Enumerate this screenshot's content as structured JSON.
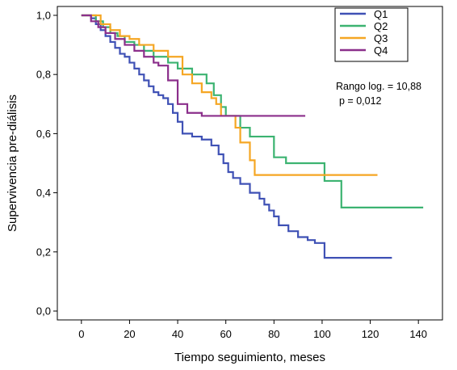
{
  "chart_data": {
    "type": "line",
    "title": "",
    "xlabel": "Tiempo seguimiento, meses",
    "ylabel": "Supervivencia pre-diálisis",
    "xlim": [
      -10,
      150
    ],
    "ylim": [
      -0.03,
      1.03
    ],
    "x_ticks": [
      0,
      20,
      40,
      60,
      80,
      100,
      120,
      140
    ],
    "y_ticks": [
      0,
      0.2,
      0.4,
      0.6,
      0.8,
      1.0
    ],
    "y_tick_labels": [
      "0,0",
      "0,2",
      "0,4",
      "0,6",
      "0,8",
      "1,0"
    ],
    "legend_position": "top-right",
    "step": true,
    "series": [
      {
        "name": "Q1",
        "color": "#3f51b5",
        "x": [
          0,
          4,
          6,
          8,
          10,
          12,
          14,
          16,
          18,
          20,
          22,
          24,
          26,
          28,
          30,
          32,
          34,
          36,
          38,
          40,
          42,
          46,
          50,
          54,
          57,
          59,
          61,
          63,
          66,
          70,
          74,
          76,
          78,
          80,
          82,
          86,
          90,
          94,
          97,
          101,
          129
        ],
        "y": [
          1.0,
          0.99,
          0.97,
          0.95,
          0.93,
          0.91,
          0.89,
          0.87,
          0.86,
          0.84,
          0.82,
          0.8,
          0.78,
          0.76,
          0.74,
          0.73,
          0.72,
          0.7,
          0.67,
          0.64,
          0.6,
          0.59,
          0.58,
          0.56,
          0.53,
          0.5,
          0.47,
          0.45,
          0.43,
          0.4,
          0.38,
          0.36,
          0.34,
          0.32,
          0.29,
          0.27,
          0.25,
          0.24,
          0.23,
          0.18,
          0.18
        ]
      },
      {
        "name": "Q2",
        "color": "#3cb371",
        "x": [
          0,
          6,
          9,
          12,
          15,
          18,
          22,
          26,
          30,
          36,
          40,
          46,
          52,
          55,
          58,
          60,
          66,
          70,
          80,
          85,
          101,
          108,
          125,
          142
        ],
        "y": [
          1.0,
          0.98,
          0.96,
          0.94,
          0.93,
          0.91,
          0.9,
          0.88,
          0.86,
          0.84,
          0.82,
          0.8,
          0.77,
          0.73,
          0.69,
          0.66,
          0.62,
          0.59,
          0.52,
          0.5,
          0.44,
          0.35,
          0.35,
          0.35
        ]
      },
      {
        "name": "Q3",
        "color": "#f5a623",
        "x": [
          0,
          8,
          12,
          16,
          20,
          24,
          30,
          36,
          42,
          46,
          50,
          54,
          56,
          58,
          64,
          66,
          70,
          72,
          80,
          90,
          101,
          123
        ],
        "y": [
          1.0,
          0.97,
          0.95,
          0.93,
          0.92,
          0.9,
          0.88,
          0.86,
          0.8,
          0.77,
          0.74,
          0.72,
          0.7,
          0.66,
          0.62,
          0.57,
          0.51,
          0.46,
          0.46,
          0.46,
          0.46,
          0.46
        ]
      },
      {
        "name": "Q4",
        "color": "#8b2f8b",
        "x": [
          0,
          4,
          7,
          10,
          14,
          18,
          22,
          26,
          30,
          32,
          36,
          40,
          44,
          50,
          56,
          62,
          70,
          80,
          93
        ],
        "y": [
          1.0,
          0.98,
          0.96,
          0.94,
          0.92,
          0.9,
          0.88,
          0.86,
          0.84,
          0.83,
          0.78,
          0.7,
          0.67,
          0.66,
          0.66,
          0.66,
          0.66,
          0.66,
          0.66
        ]
      }
    ],
    "annotations": [
      "Rango log. = 10,88",
      "p = 0,012"
    ]
  }
}
